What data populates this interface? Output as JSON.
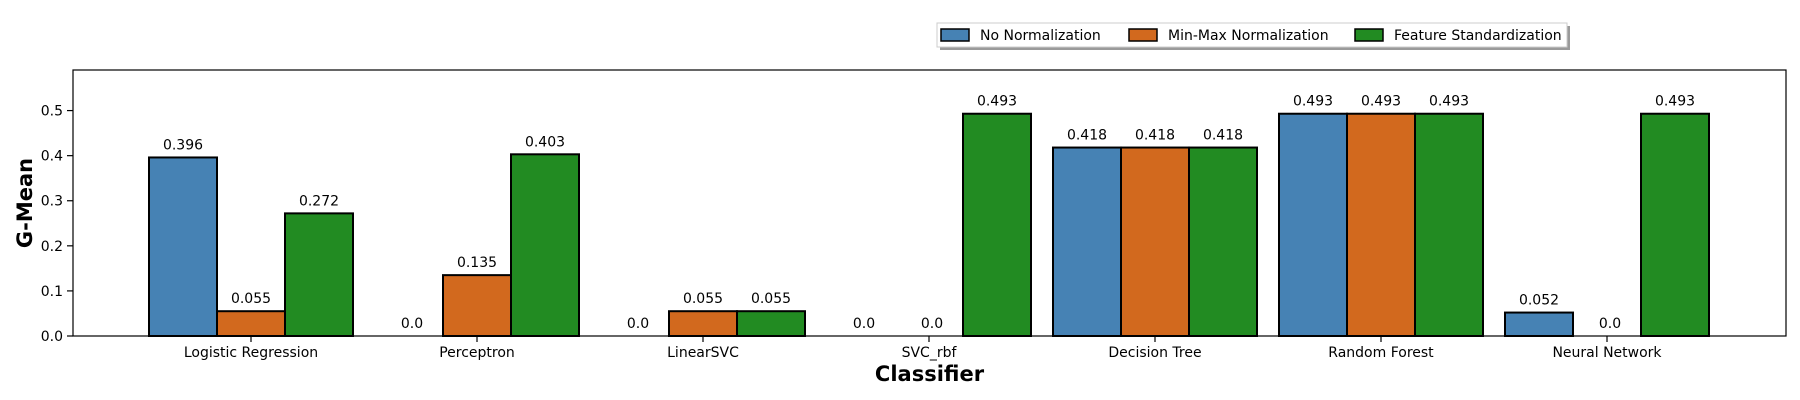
{
  "chart_data": {
    "type": "bar",
    "title": "",
    "xlabel": "Classifier",
    "ylabel": "G-Mean",
    "categories": [
      "Logistic Regression",
      "Perceptron",
      "LinearSVC",
      "SVC_rbf",
      "Decision Tree",
      "Random Forest",
      "Neural Network"
    ],
    "series": [
      {
        "name": "No Normalization",
        "values": [
          0.396,
          0.0,
          0.0,
          0.0,
          0.418,
          0.493,
          0.052
        ],
        "labels": [
          "0.396",
          "0.0",
          "0.0",
          "0.0",
          "0.418",
          "0.493",
          "0.052"
        ],
        "color": "#4682b4"
      },
      {
        "name": "Min-Max Normalization",
        "values": [
          0.055,
          0.135,
          0.055,
          0.0,
          0.418,
          0.493,
          0.0
        ],
        "labels": [
          "0.055",
          "0.135",
          "0.055",
          "0.0",
          "0.418",
          "0.493",
          "0.0"
        ],
        "color": "#d2691e"
      },
      {
        "name": "Feature Standardization",
        "values": [
          0.272,
          0.403,
          0.055,
          0.493,
          0.418,
          0.493,
          0.493
        ],
        "labels": [
          "0.272",
          "0.403",
          "0.055",
          "0.493",
          "0.418",
          "0.493",
          "0.493"
        ],
        "color": "#228b22"
      }
    ],
    "ylim": [
      0,
      0.59
    ],
    "yticks": [
      "0.0",
      "0.1",
      "0.2",
      "0.3",
      "0.4",
      "0.5"
    ],
    "legend_position": "top-right, above plot",
    "grid": false
  }
}
